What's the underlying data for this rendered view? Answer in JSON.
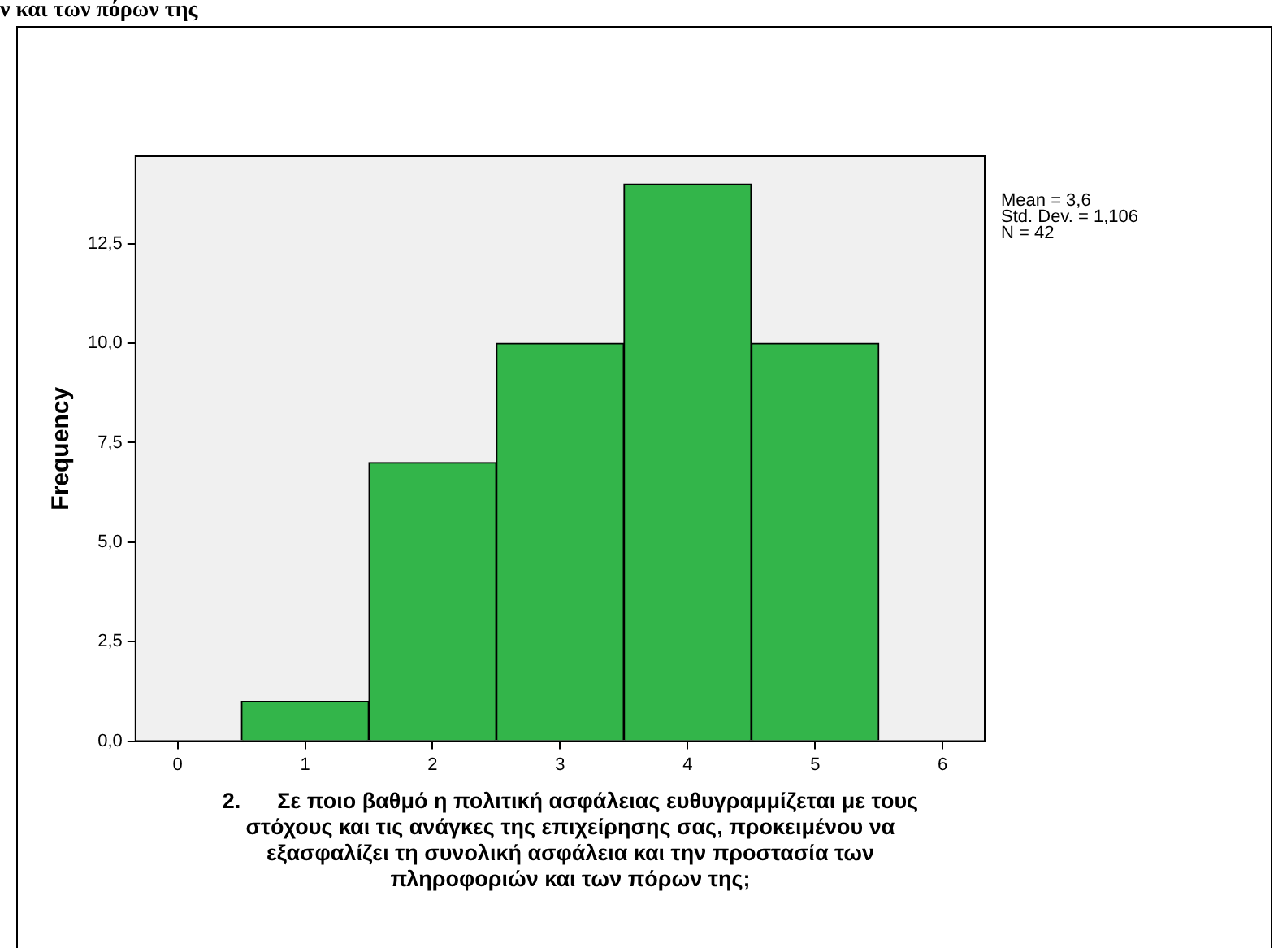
{
  "chart_data": {
    "type": "histogram",
    "title": "ν και των πόρων της",
    "ylabel": "Frequency",
    "xlabel": "2.      Σε ποιο βαθμό η πολιτική ασφάλειας ευθυγραμμίζεται με τους στόχους και τις ανάγκες της επιχείρησης σας, προκειμένου να εξασφαλίζει τη συνολική ασφάλεια και την προστασία των πληροφοριών και των πόρων της;",
    "bins": [
      0.5,
      1.5,
      2.5,
      3.5,
      4.5,
      5.5
    ],
    "values": [
      1,
      7,
      10,
      14,
      10
    ],
    "color": "#33b54a",
    "xlim": [
      -0.33,
      6.33
    ],
    "xticks": [
      0,
      1,
      2,
      3,
      4,
      5,
      6
    ],
    "ylim": [
      0,
      14.7
    ],
    "yticks": [
      {
        "value": 0,
        "label": "0,0"
      },
      {
        "value": 2.5,
        "label": "2,5"
      },
      {
        "value": 5,
        "label": "5,0"
      },
      {
        "value": 7.5,
        "label": "7,5"
      },
      {
        "value": 10,
        "label": "10,0"
      },
      {
        "value": 12.5,
        "label": "12,5"
      }
    ],
    "grid": false,
    "legend": false,
    "annotations": [
      "Mean = 3,6",
      "Std. Dev. = 1,106",
      "N = 42"
    ]
  }
}
